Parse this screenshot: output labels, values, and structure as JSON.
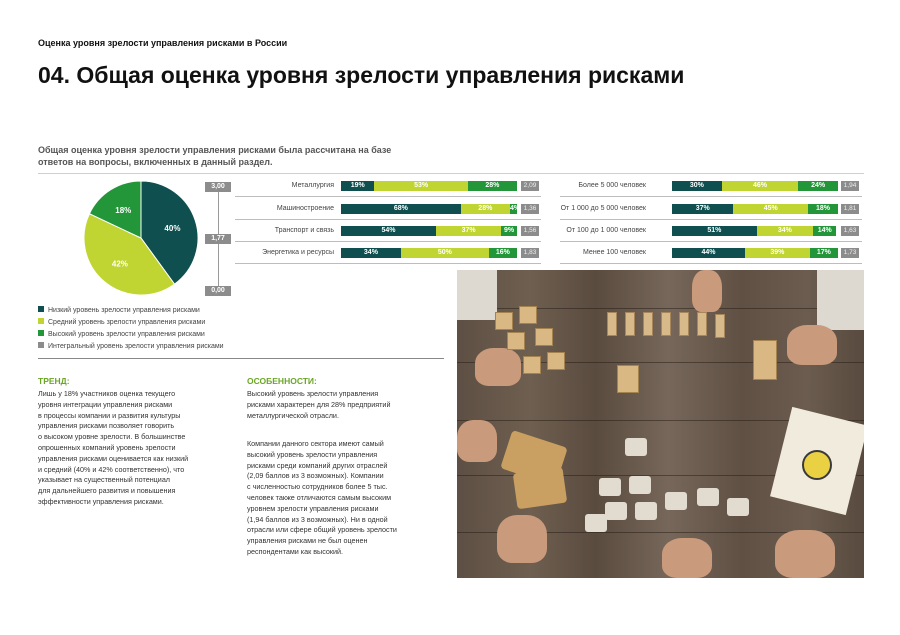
{
  "header": {
    "small_title": "Оценка уровня зрелости управления рисками в России",
    "title": "04. Общая оценка уровня зрелости управления рисками"
  },
  "intro": "Общая оценка уровня зрелости управления рисками была рассчитана на базе ответов на вопросы, включенных в данный раздел.",
  "colors": {
    "low": "#0f4f4f",
    "medium": "#c0d532",
    "high": "#229639",
    "integral": "#8c8c8c",
    "accent_title": "#6aa624"
  },
  "scale": {
    "top": "3,00",
    "mid": "1,77",
    "bottom": "0,00"
  },
  "legend": [
    {
      "label": "Низкий уровень зрелости управления рисками",
      "color": "#0f4f4f"
    },
    {
      "label": "Средний уровень зрелости управления рисками",
      "color": "#c0d532"
    },
    {
      "label": "Высокий уровень зрелости управления рисками",
      "color": "#229639"
    },
    {
      "label": "Интегральный уровень зрелости управления рисками",
      "color": "#8c8c8c"
    }
  ],
  "chart_data": [
    {
      "type": "pie",
      "categories": [
        "Низкий",
        "Средний",
        "Высокий"
      ],
      "values": [
        40,
        42,
        18
      ],
      "labels": [
        "40%",
        "42%",
        "18%"
      ],
      "colors": [
        "#0f4f4f",
        "#c0d532",
        "#229639"
      ]
    },
    {
      "type": "bar",
      "stacked": true,
      "orientation": "horizontal",
      "categories": [
        "Металлургия",
        "Машиностроение",
        "Транспорт и связь",
        "Энергетика и ресурсы"
      ],
      "series": [
        {
          "values": [
            19,
            68,
            54,
            34
          ],
          "labels": [
            "19%",
            "68%",
            "54%",
            "34%"
          ]
        },
        {
          "values": [
            53,
            28,
            37,
            50
          ],
          "labels": [
            "53%",
            "28%",
            "37%",
            "50%"
          ]
        },
        {
          "values": [
            28,
            4,
            9,
            16
          ],
          "labels": [
            "28%",
            "4%",
            "9%",
            "16%"
          ]
        }
      ],
      "scores": [
        "2,09",
        "1,36",
        "1,56",
        "1,83"
      ]
    },
    {
      "type": "bar",
      "stacked": true,
      "orientation": "horizontal",
      "categories": [
        "Более 5 000 человек",
        "От 1 000 до 5 000 человек",
        "От 100 до 1 000 человек",
        "Менее 100 человек"
      ],
      "series": [
        {
          "values": [
            30,
            37,
            51,
            44
          ],
          "labels": [
            "30%",
            "37%",
            "51%",
            "44%"
          ]
        },
        {
          "values": [
            46,
            45,
            34,
            39
          ],
          "labels": [
            "46%",
            "45%",
            "34%",
            "39%"
          ]
        },
        {
          "values": [
            24,
            18,
            14,
            17
          ],
          "labels": [
            "24%",
            "18%",
            "14%",
            "17%"
          ]
        }
      ],
      "scores": [
        "1,94",
        "1,81",
        "1,63",
        "1,73"
      ]
    }
  ],
  "trend": {
    "title": "ТРЕНД:",
    "text": "Лишь у 18% участников оценка текущего\nуровня интеграции управления рисками\nв процессы компании и развития культуры\nуправления рисками позволяет говорить\nо высоком уровне зрелости. В большинстве\nопрошенных компаний уровень зрелости\nуправления рисками оценивается как низкий\nи средний (40% и 42% соответственно), что\nуказывает на существенный потенциал\nдля дальнейшего развития и повышения\nэффективности управления рисками."
  },
  "features": {
    "title": "ОСОБЕННОСТИ:",
    "text1": "Высокий уровень зрелости управления\nрисками характерен для 28% предприятий\nметаллургической отрасли.",
    "text2": "Компании данного сектора имеют самый\nвысокий уровень зрелости управления\nрисками среди компаний других отраслей\n(2,09 баллов из 3 возможных). Компании\nс численностью сотрудников более 5 тыс.\nчеловек также отличаются самым высоким\nуровнем зрелости управления рисками\n(1,94 баллов из 3 возможных). Ни в одной\nотрасли или сфере общий уровень зрелости\nуправления рисками не был оценен\nреспондентами как высокий."
  }
}
